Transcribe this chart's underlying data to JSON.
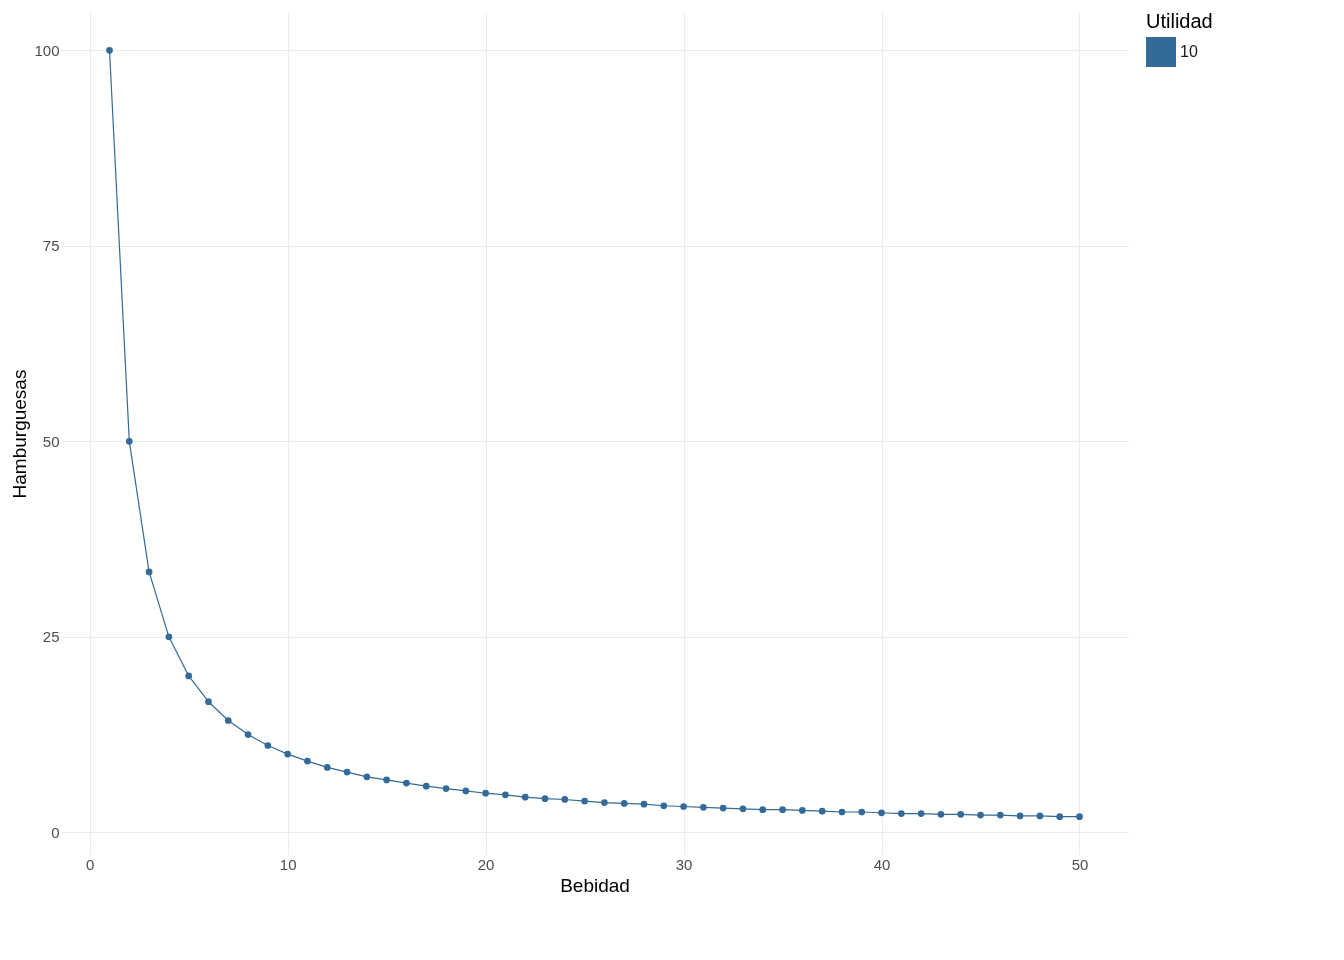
{
  "chart_data": {
    "type": "line",
    "xlabel": "Bebidad",
    "ylabel": "Hamburguesas",
    "legend_title": "Utilidad",
    "legend": "right",
    "grid": true,
    "marker": "circle",
    "line_style": "solid",
    "x": [
      1,
      2,
      3,
      4,
      5,
      6,
      7,
      8,
      9,
      10,
      11,
      12,
      13,
      14,
      15,
      16,
      17,
      18,
      19,
      20,
      21,
      22,
      23,
      24,
      25,
      26,
      27,
      28,
      29,
      30,
      31,
      32,
      33,
      34,
      35,
      36,
      37,
      38,
      39,
      40,
      41,
      42,
      43,
      44,
      45,
      46,
      47,
      48,
      49,
      50
    ],
    "xlim": [
      -1.45,
      52.45
    ],
    "xticks": [
      0,
      10,
      20,
      30,
      40,
      50
    ],
    "ylim": [
      -2.9,
      104.9
    ],
    "yticks": [
      0,
      25,
      50,
      75,
      100
    ],
    "series": [
      {
        "name": "10",
        "color": "#336a98",
        "values": [
          100,
          50,
          33.3,
          25,
          20,
          16.7,
          14.3,
          12.5,
          11.1,
          10,
          9.1,
          8.3,
          7.7,
          7.1,
          6.7,
          6.3,
          5.9,
          5.6,
          5.3,
          5,
          4.8,
          4.5,
          4.3,
          4.2,
          4,
          3.8,
          3.7,
          3.6,
          3.4,
          3.3,
          3.2,
          3.1,
          3,
          2.9,
          2.9,
          2.8,
          2.7,
          2.6,
          2.6,
          2.5,
          2.4,
          2.4,
          2.3,
          2.3,
          2.2,
          2.2,
          2.1,
          2.1,
          2,
          2
        ]
      }
    ]
  }
}
